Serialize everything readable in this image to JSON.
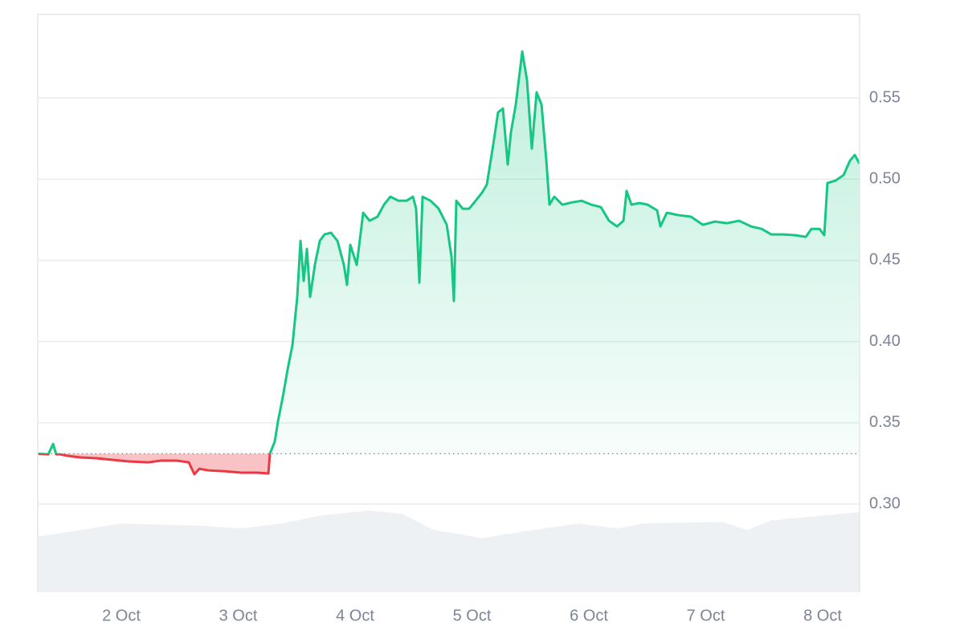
{
  "chart_data": {
    "type": "line",
    "xlim": [
      1.285,
      8.316
    ],
    "ylim": [
      0.2457,
      0.6014
    ],
    "xticks": [
      {
        "value": 2,
        "label": "2 Oct"
      },
      {
        "value": 3,
        "label": "3 Oct"
      },
      {
        "value": 4,
        "label": "4 Oct"
      },
      {
        "value": 5,
        "label": "5 Oct"
      },
      {
        "value": 6,
        "label": "6 Oct"
      },
      {
        "value": 7,
        "label": "7 Oct"
      },
      {
        "value": 8,
        "label": "8 Oct"
      }
    ],
    "yticks": [
      {
        "value": 0.3,
        "label": "0.30"
      },
      0.35,
      {
        "value": 0.4,
        "label": "0.40"
      },
      0.45,
      {
        "value": 0.5,
        "label": "0.50"
      },
      0.55
    ],
    "grid": true,
    "baseline": 0.331,
    "up_color": "#16c784",
    "down_color": "#ea3943",
    "price": {
      "x": [
        1.285,
        1.375,
        1.416,
        1.443,
        1.478,
        1.546,
        1.649,
        1.787,
        1.924,
        2.062,
        2.234,
        2.337,
        2.474,
        2.577,
        2.625,
        2.667,
        2.749,
        2.887,
        3.024,
        3.162,
        3.258,
        3.271,
        3.313,
        3.34,
        3.381,
        3.423,
        3.464,
        3.505,
        3.533,
        3.56,
        3.588,
        3.615,
        3.656,
        3.698,
        3.739,
        3.794,
        3.849,
        3.904,
        3.931,
        3.959,
        4.014,
        4.069,
        4.124,
        4.192,
        4.247,
        4.302,
        4.371,
        4.44,
        4.495,
        4.522,
        4.55,
        4.577,
        4.646,
        4.715,
        4.784,
        4.825,
        4.845,
        4.866,
        4.921,
        4.976,
        5.031,
        5.086,
        5.127,
        5.182,
        5.223,
        5.265,
        5.306,
        5.333,
        5.375,
        5.43,
        5.471,
        5.512,
        5.553,
        5.595,
        5.636,
        5.663,
        5.704,
        5.773,
        5.856,
        5.938,
        6.021,
        6.103,
        6.172,
        6.241,
        6.296,
        6.323,
        6.364,
        6.433,
        6.502,
        6.584,
        6.612,
        6.667,
        6.77,
        6.873,
        6.976,
        7.079,
        7.182,
        7.285,
        7.388,
        7.478,
        7.56,
        7.663,
        7.766,
        7.856,
        7.904,
        7.973,
        8.014,
        8.041,
        8.11,
        8.179,
        8.234,
        8.275,
        8.316
      ],
      "values": [
        0.331,
        0.3306,
        0.337,
        0.3306,
        0.3306,
        0.3296,
        0.3287,
        0.3282,
        0.3272,
        0.3262,
        0.3257,
        0.3267,
        0.3267,
        0.3257,
        0.3183,
        0.3217,
        0.3207,
        0.3202,
        0.3193,
        0.3193,
        0.3188,
        0.331,
        0.3385,
        0.3509,
        0.3657,
        0.383,
        0.3978,
        0.4275,
        0.462,
        0.4373,
        0.4571,
        0.4275,
        0.4472,
        0.462,
        0.466,
        0.467,
        0.462,
        0.4472,
        0.4349,
        0.4596,
        0.4472,
        0.4793,
        0.4744,
        0.4769,
        0.4843,
        0.4892,
        0.4867,
        0.4867,
        0.4892,
        0.4818,
        0.4363,
        0.4892,
        0.4867,
        0.4818,
        0.4719,
        0.4522,
        0.425,
        0.4867,
        0.4818,
        0.4818,
        0.4867,
        0.4917,
        0.4966,
        0.5213,
        0.5411,
        0.5435,
        0.509,
        0.5287,
        0.546,
        0.5786,
        0.5608,
        0.5188,
        0.5534,
        0.546,
        0.5114,
        0.4843,
        0.4892,
        0.4843,
        0.4857,
        0.4867,
        0.4843,
        0.4828,
        0.4744,
        0.4709,
        0.4744,
        0.4927,
        0.4843,
        0.4853,
        0.4843,
        0.4808,
        0.4709,
        0.4793,
        0.4778,
        0.4769,
        0.4719,
        0.4739,
        0.4729,
        0.4744,
        0.4709,
        0.4694,
        0.466,
        0.466,
        0.4655,
        0.4645,
        0.4694,
        0.4694,
        0.4655,
        0.4976,
        0.4991,
        0.5025,
        0.5114,
        0.5149,
        0.5095
      ]
    },
    "volume": {
      "color": "#eef1f4",
      "x": [
        1.285,
        1.649,
        1.993,
        2.68,
        3.024,
        3.368,
        3.711,
        4.124,
        4.399,
        4.674,
        4.88,
        5.086,
        5.43,
        5.911,
        6.254,
        6.46,
        7.148,
        7.354,
        7.56,
        8.316
      ],
      "values": [
        0.28,
        0.284,
        0.288,
        0.2867,
        0.285,
        0.288,
        0.293,
        0.296,
        0.294,
        0.284,
        0.2817,
        0.279,
        0.283,
        0.288,
        0.285,
        0.288,
        0.289,
        0.284,
        0.29,
        0.295
      ]
    }
  }
}
